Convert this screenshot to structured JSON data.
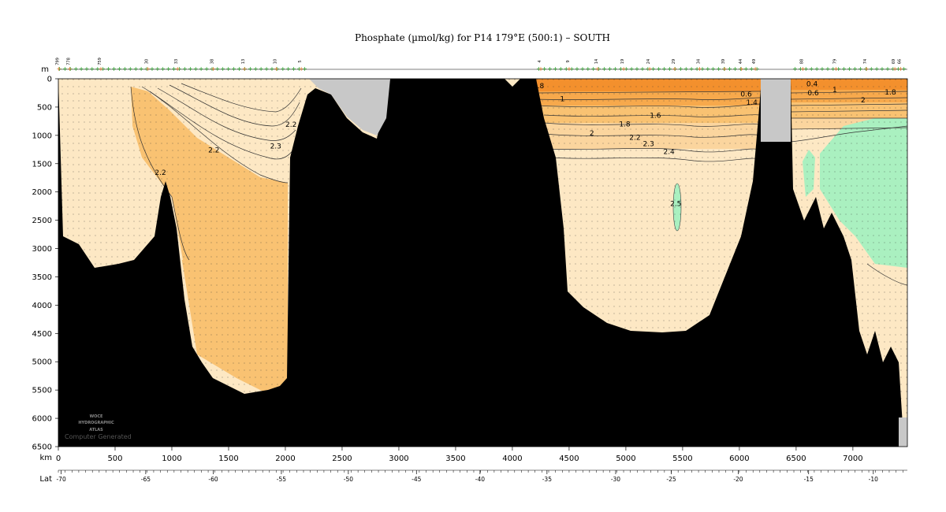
{
  "chart_data": {
    "type": "heatmap",
    "title": "Phosphate (µmol/kg) for P14 179°E (500:1) – SOUTH",
    "depth_unit": "m",
    "distance_unit": "km",
    "lat_label": "Lat",
    "xlim": [
      0,
      7480
    ],
    "ylim": [
      6500,
      0
    ],
    "depth_ticks": [
      "0",
      "500",
      "1000",
      "1500",
      "2000",
      "2500",
      "3000",
      "3500",
      "4000",
      "4500",
      "5000",
      "5500",
      "6000",
      "6500"
    ],
    "depth_values": [
      0,
      500,
      1000,
      1500,
      2000,
      2500,
      3000,
      3500,
      4000,
      4500,
      5000,
      5500,
      6000,
      6500
    ],
    "distance_ticks": [
      "0",
      "500",
      "1000",
      "1500",
      "2000",
      "2500",
      "3000",
      "3500",
      "4000",
      "4500",
      "5000",
      "5500",
      "6000",
      "6500",
      "7000"
    ],
    "distance_values": [
      0,
      500,
      1000,
      1500,
      2000,
      2500,
      3000,
      3500,
      4000,
      4500,
      5000,
      5500,
      6000,
      6500,
      7000
    ],
    "lat_ticks": [
      "-70",
      "-65",
      "-60",
      "-55",
      "-50",
      "-45",
      "-40",
      "-35",
      "-30",
      "-25",
      "-20",
      "-15",
      "-10"
    ],
    "lat_values": [
      -70,
      -65,
      -60,
      -55,
      -50,
      -45,
      -40,
      -35,
      -30,
      -25,
      -20,
      -15,
      -10
    ],
    "lat_km": [
      25,
      770,
      1365,
      1965,
      2555,
      3155,
      3715,
      4305,
      4910,
      5400,
      5990,
      6610,
      7180
    ],
    "contour_labels": [
      {
        "text": "2.2",
        "km": 900,
        "depth": 1700
      },
      {
        "text": "2.2",
        "km": 1370,
        "depth": 1300
      },
      {
        "text": "2.3",
        "km": 1915,
        "depth": 1230
      },
      {
        "text": "2.2",
        "km": 2050,
        "depth": 850
      },
      {
        "text": ".8",
        "km": 4250,
        "depth": 170
      },
      {
        "text": "1",
        "km": 4440,
        "depth": 400
      },
      {
        "text": "1.8",
        "km": 4990,
        "depth": 840
      },
      {
        "text": "1.6",
        "km": 5260,
        "depth": 690
      },
      {
        "text": "2",
        "km": 4700,
        "depth": 1000
      },
      {
        "text": "2.2",
        "km": 5080,
        "depth": 1080
      },
      {
        "text": "2.3",
        "km": 5200,
        "depth": 1190
      },
      {
        "text": "2.4",
        "km": 5380,
        "depth": 1330
      },
      {
        "text": "2.5",
        "km": 5440,
        "depth": 2250
      },
      {
        "text": "0.6",
        "km": 6060,
        "depth": 310
      },
      {
        "text": "1.4",
        "km": 6110,
        "depth": 460
      },
      {
        "text": "0.4",
        "km": 6640,
        "depth": 130
      },
      {
        "text": "0.6",
        "km": 6650,
        "depth": 290
      },
      {
        "text": "1",
        "km": 6840,
        "depth": 240
      },
      {
        "text": "2",
        "km": 7090,
        "depth": 420
      },
      {
        "text": "1.8",
        "km": 7330,
        "depth": 280
      }
    ],
    "station_labels": [
      {
        "text": "799",
        "km": 5
      },
      {
        "text": "778",
        "km": 100
      },
      {
        "text": "759",
        "km": 375
      },
      {
        "text": "30",
        "km": 790
      },
      {
        "text": "33",
        "km": 1050
      },
      {
        "text": "38",
        "km": 1365
      },
      {
        "text": "13",
        "km": 1640
      },
      {
        "text": "10",
        "km": 1920
      },
      {
        "text": "5",
        "km": 2140
      },
      {
        "text": "4",
        "km": 4250
      },
      {
        "text": "9",
        "km": 4500
      },
      {
        "text": "14",
        "km": 4750
      },
      {
        "text": "19",
        "km": 4980
      },
      {
        "text": "24",
        "km": 5210
      },
      {
        "text": "29",
        "km": 5430
      },
      {
        "text": "34",
        "km": 5650
      },
      {
        "text": "39",
        "km": 5870
      },
      {
        "text": "44",
        "km": 6020
      },
      {
        "text": "49",
        "km": 6140
      },
      {
        "text": "88",
        "km": 6560
      },
      {
        "text": "79",
        "km": 6850
      },
      {
        "text": "74",
        "km": 7120
      },
      {
        "text": "69",
        "km": 7370
      },
      {
        "text": "66",
        "km": 7420
      }
    ],
    "colors": {
      "very_light": "#fde8c4",
      "light": "#fbd59e",
      "medium": "#f9c272",
      "orange": "#f7a94c",
      "dark_orange": "#f3902d",
      "green": "#aaf0c0",
      "bathymetry": "#000000",
      "no_data": "#c8c8c8",
      "station_marker": "#22a022",
      "station_marker_alt": "#e07820"
    }
  },
  "logo": {
    "line1": "WOCE",
    "line2": "HYDROGRAPHIC",
    "line3": "ATLAS"
  },
  "credit": "Computer Generated"
}
